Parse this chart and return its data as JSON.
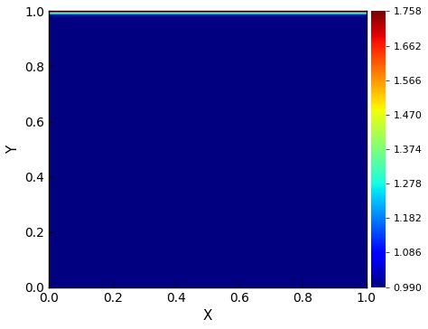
{
  "title": "",
  "xlabel": "X",
  "ylabel": "Y",
  "xlim": [
    0.0,
    1.0
  ],
  "ylim": [
    0.0,
    1.0
  ],
  "xticks": [
    0.0,
    0.2,
    0.4,
    0.6,
    0.8,
    1.0
  ],
  "ytick_vals": [
    0.0,
    0.2,
    0.4,
    0.6,
    0.8,
    1.0
  ],
  "xtick_labels": [
    "0.0",
    "0.2",
    "0.4",
    "0.6",
    "0.8",
    "1.0"
  ],
  "ytick_labels": [
    "0.0",
    "0.2",
    "0.4",
    "0.6",
    "0.8",
    "1.0"
  ],
  "colorbar_ticks": [
    0.99,
    1.086,
    1.182,
    1.278,
    1.374,
    1.47,
    1.566,
    1.662,
    1.758
  ],
  "vmin": 0.99,
  "vmax": 1.758,
  "nx": 400,
  "ny": 400,
  "boundary_layer_thickness": 0.018,
  "peak_value": 1.758,
  "base_value": 0.99,
  "colormap": "jet",
  "figsize": [
    4.74,
    3.64
  ],
  "dpi": 100
}
